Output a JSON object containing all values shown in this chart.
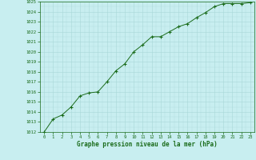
{
  "x": [
    0,
    1,
    2,
    3,
    4,
    5,
    6,
    7,
    8,
    9,
    10,
    11,
    12,
    13,
    14,
    15,
    16,
    17,
    18,
    19,
    20,
    21,
    22,
    23
  ],
  "y": [
    1012.0,
    1013.3,
    1013.7,
    1014.5,
    1015.6,
    1015.9,
    1016.0,
    1017.0,
    1018.1,
    1018.8,
    1020.0,
    1020.7,
    1021.5,
    1021.5,
    1022.0,
    1022.5,
    1022.8,
    1023.4,
    1023.9,
    1024.5,
    1024.8,
    1024.8,
    1024.8,
    1024.9
  ],
  "line_color": "#1a6b1a",
  "marker": "+",
  "marker_color": "#1a6b1a",
  "bg_color": "#c8eef0",
  "grid_color": "#a8d8d8",
  "xlabel": "Graphe pression niveau de la mer (hPa)",
  "xlabel_color": "#1a6b1a",
  "tick_color": "#1a6b1a",
  "ylim": [
    1012,
    1025
  ],
  "xlim": [
    0,
    23
  ],
  "yticks": [
    1012,
    1013,
    1014,
    1015,
    1016,
    1017,
    1018,
    1019,
    1020,
    1021,
    1022,
    1023,
    1024,
    1025
  ],
  "xticks": [
    0,
    1,
    2,
    3,
    4,
    5,
    6,
    7,
    8,
    9,
    10,
    11,
    12,
    13,
    14,
    15,
    16,
    17,
    18,
    19,
    20,
    21,
    22,
    23
  ]
}
